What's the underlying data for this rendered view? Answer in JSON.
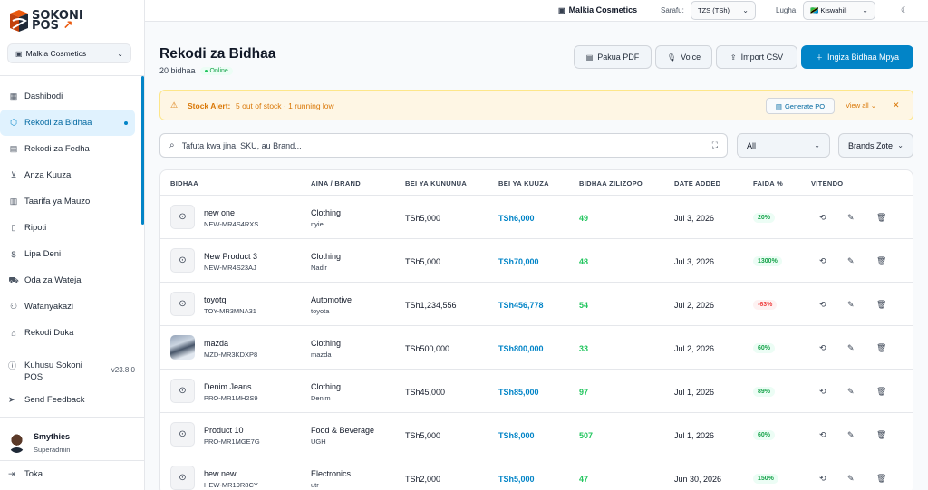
{
  "brand": {
    "name_top": "SOKONI",
    "name_bottom": "POS"
  },
  "sidebar": {
    "store_select": "Malkia Cosmetics",
    "nav": [
      {
        "label": "Dashibodi",
        "icon": "grid-icon"
      },
      {
        "label": "Rekodi za Bidhaa",
        "icon": "box-icon",
        "active": true
      },
      {
        "label": "Rekodi za Fedha",
        "icon": "document-icon"
      },
      {
        "label": "Anza Kuuza",
        "icon": "cart-icon"
      },
      {
        "label": "Taarifa ya Mauzo",
        "icon": "clipboard-icon"
      },
      {
        "label": "Ripoti",
        "icon": "file-icon"
      },
      {
        "label": "Lipa Deni",
        "icon": "dollar-icon"
      },
      {
        "label": "Oda za Wateja",
        "icon": "truck-icon"
      },
      {
        "label": "Wafanyakazi",
        "icon": "users-icon"
      },
      {
        "label": "Rekodi Duka",
        "icon": "store-icon"
      }
    ],
    "about_label": "Kuhusu Sokoni POS",
    "version": "v23.8.0",
    "feedback_label": "Send Feedback",
    "user_name": "Smythies",
    "user_role": "Superadmin",
    "logout_label": "Toka"
  },
  "topbar": {
    "store": "Malkia Cosmetics",
    "currency_label": "Sarafu:",
    "currency_value": "TZS (TSh)",
    "language_label": "Lugha:",
    "language_value": "🇹🇿 Kiswahili"
  },
  "header": {
    "title": "Rekodi za Bidhaa",
    "count": "20 bidhaa",
    "status": "Online",
    "buttons": {
      "pdf": "Pakua PDF",
      "voice": "Voice",
      "import": "Import CSV",
      "add": "Ingiza Bidhaa Mpya"
    }
  },
  "alert": {
    "title": "Stock Alert:",
    "message": "5 out of stock · 1 running low",
    "generate": "Generate PO",
    "view_all": "View all ⌄"
  },
  "search": {
    "placeholder": "Tafuta kwa jina, SKU, au Brand..."
  },
  "filters": {
    "category": "All",
    "brand": "Brands Zote"
  },
  "table": {
    "headers": [
      "BIDHAA",
      "AINA / BRAND",
      "BEI YA KUNUNUA",
      "BEI YA KUUZA",
      "BIDHAA ZILIZOPO",
      "DATE ADDED",
      "FAIDA %",
      "VITENDO"
    ],
    "rows": [
      {
        "name": "new one",
        "sku": "NEW-MR4S4RXS",
        "category": "Clothing",
        "brand": "nyie",
        "buy": "TSh5,000",
        "sell": "TSh6,000",
        "stock": "49",
        "date": "Jul 3, 2026",
        "profit": "20%",
        "profit_positive": true,
        "has_image": false
      },
      {
        "name": "New Product 3",
        "sku": "NEW-MR4S23AJ",
        "category": "Clothing",
        "brand": "Nadir",
        "buy": "TSh5,000",
        "sell": "TSh70,000",
        "stock": "48",
        "date": "Jul 3, 2026",
        "profit": "1300%",
        "profit_positive": true,
        "has_image": false
      },
      {
        "name": "toyotq",
        "sku": "TOY-MR3MNA31",
        "category": "Automotive",
        "brand": "toyota",
        "buy": "TSh1,234,556",
        "sell": "TSh456,778",
        "stock": "54",
        "date": "Jul 2, 2026",
        "profit": "-63%",
        "profit_positive": false,
        "has_image": false
      },
      {
        "name": "mazda",
        "sku": "MZD-MR3KDXP8",
        "category": "Clothing",
        "brand": "mazda",
        "buy": "TSh500,000",
        "sell": "TSh800,000",
        "stock": "33",
        "date": "Jul 2, 2026",
        "profit": "60%",
        "profit_positive": true,
        "has_image": true
      },
      {
        "name": "Denim Jeans",
        "sku": "PRO-MR1MH2S9",
        "category": "Clothing",
        "brand": "Denim",
        "buy": "TSh45,000",
        "sell": "TSh85,000",
        "stock": "97",
        "date": "Jul 1, 2026",
        "profit": "89%",
        "profit_positive": true,
        "has_image": false
      },
      {
        "name": "Product 10",
        "sku": "PRO-MR1MGE7G",
        "category": "Food & Beverage",
        "brand": "UGH",
        "buy": "TSh5,000",
        "sell": "TSh8,000",
        "stock": "507",
        "date": "Jul 1, 2026",
        "profit": "60%",
        "profit_positive": true,
        "has_image": false
      },
      {
        "name": "hew new",
        "sku": "HEW-MR19R8CY",
        "category": "Electronics",
        "brand": "utr",
        "buy": "TSh2,000",
        "sell": "TSh5,000",
        "stock": "47",
        "date": "Jun 30, 2026",
        "profit": "150%",
        "profit_positive": true,
        "has_image": false
      }
    ]
  },
  "colors": {
    "accent": "#0284c7",
    "brand_orange": "#ea580c",
    "stock_green": "#22c55e",
    "alert_amber": "#d97706",
    "negative_red": "#ef4444"
  }
}
